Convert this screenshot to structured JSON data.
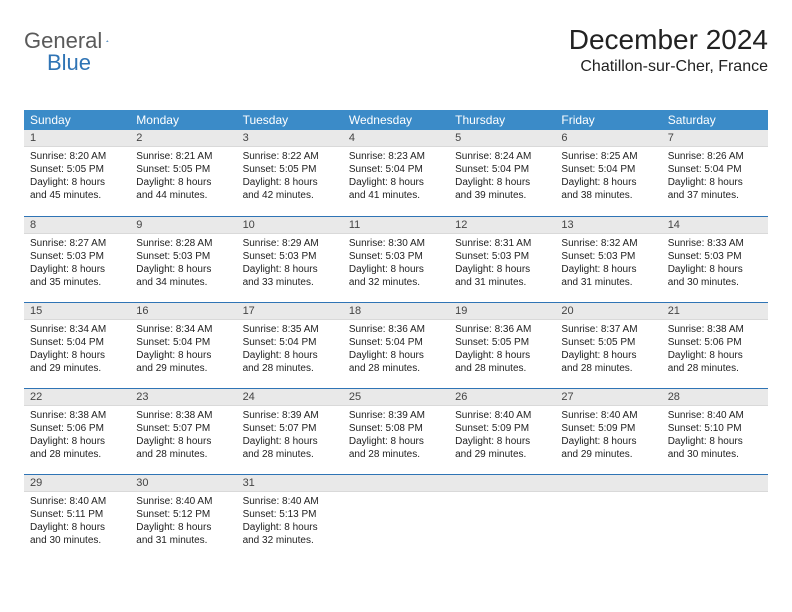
{
  "logo": {
    "text1": "General",
    "text2": "Blue"
  },
  "title": "December 2024",
  "location": "Chatillon-sur-Cher, France",
  "colors": {
    "header_bg": "#3b8bc8",
    "header_text": "#ffffff",
    "daynum_bg": "#e9e9e9",
    "row_border": "#2f74b5",
    "logo_gray": "#5a5a5a",
    "logo_blue": "#2f74b5",
    "body_text": "#222222",
    "page_bg": "#ffffff"
  },
  "typography": {
    "title_fontsize": 28,
    "location_fontsize": 16,
    "weekday_fontsize": 12,
    "daynum_fontsize": 11,
    "cell_fontsize": 10
  },
  "layout": {
    "columns": 7,
    "rows": 5,
    "start_weekday": "Sunday"
  },
  "weekdays": [
    "Sunday",
    "Monday",
    "Tuesday",
    "Wednesday",
    "Thursday",
    "Friday",
    "Saturday"
  ],
  "days": [
    {
      "n": "1",
      "sunrise": "8:20 AM",
      "sunset": "5:05 PM",
      "daylight": "8 hours and 45 minutes."
    },
    {
      "n": "2",
      "sunrise": "8:21 AM",
      "sunset": "5:05 PM",
      "daylight": "8 hours and 44 minutes."
    },
    {
      "n": "3",
      "sunrise": "8:22 AM",
      "sunset": "5:05 PM",
      "daylight": "8 hours and 42 minutes."
    },
    {
      "n": "4",
      "sunrise": "8:23 AM",
      "sunset": "5:04 PM",
      "daylight": "8 hours and 41 minutes."
    },
    {
      "n": "5",
      "sunrise": "8:24 AM",
      "sunset": "5:04 PM",
      "daylight": "8 hours and 39 minutes."
    },
    {
      "n": "6",
      "sunrise": "8:25 AM",
      "sunset": "5:04 PM",
      "daylight": "8 hours and 38 minutes."
    },
    {
      "n": "7",
      "sunrise": "8:26 AM",
      "sunset": "5:04 PM",
      "daylight": "8 hours and 37 minutes."
    },
    {
      "n": "8",
      "sunrise": "8:27 AM",
      "sunset": "5:03 PM",
      "daylight": "8 hours and 35 minutes."
    },
    {
      "n": "9",
      "sunrise": "8:28 AM",
      "sunset": "5:03 PM",
      "daylight": "8 hours and 34 minutes."
    },
    {
      "n": "10",
      "sunrise": "8:29 AM",
      "sunset": "5:03 PM",
      "daylight": "8 hours and 33 minutes."
    },
    {
      "n": "11",
      "sunrise": "8:30 AM",
      "sunset": "5:03 PM",
      "daylight": "8 hours and 32 minutes."
    },
    {
      "n": "12",
      "sunrise": "8:31 AM",
      "sunset": "5:03 PM",
      "daylight": "8 hours and 31 minutes."
    },
    {
      "n": "13",
      "sunrise": "8:32 AM",
      "sunset": "5:03 PM",
      "daylight": "8 hours and 31 minutes."
    },
    {
      "n": "14",
      "sunrise": "8:33 AM",
      "sunset": "5:03 PM",
      "daylight": "8 hours and 30 minutes."
    },
    {
      "n": "15",
      "sunrise": "8:34 AM",
      "sunset": "5:04 PM",
      "daylight": "8 hours and 29 minutes."
    },
    {
      "n": "16",
      "sunrise": "8:34 AM",
      "sunset": "5:04 PM",
      "daylight": "8 hours and 29 minutes."
    },
    {
      "n": "17",
      "sunrise": "8:35 AM",
      "sunset": "5:04 PM",
      "daylight": "8 hours and 28 minutes."
    },
    {
      "n": "18",
      "sunrise": "8:36 AM",
      "sunset": "5:04 PM",
      "daylight": "8 hours and 28 minutes."
    },
    {
      "n": "19",
      "sunrise": "8:36 AM",
      "sunset": "5:05 PM",
      "daylight": "8 hours and 28 minutes."
    },
    {
      "n": "20",
      "sunrise": "8:37 AM",
      "sunset": "5:05 PM",
      "daylight": "8 hours and 28 minutes."
    },
    {
      "n": "21",
      "sunrise": "8:38 AM",
      "sunset": "5:06 PM",
      "daylight": "8 hours and 28 minutes."
    },
    {
      "n": "22",
      "sunrise": "8:38 AM",
      "sunset": "5:06 PM",
      "daylight": "8 hours and 28 minutes."
    },
    {
      "n": "23",
      "sunrise": "8:38 AM",
      "sunset": "5:07 PM",
      "daylight": "8 hours and 28 minutes."
    },
    {
      "n": "24",
      "sunrise": "8:39 AM",
      "sunset": "5:07 PM",
      "daylight": "8 hours and 28 minutes."
    },
    {
      "n": "25",
      "sunrise": "8:39 AM",
      "sunset": "5:08 PM",
      "daylight": "8 hours and 28 minutes."
    },
    {
      "n": "26",
      "sunrise": "8:40 AM",
      "sunset": "5:09 PM",
      "daylight": "8 hours and 29 minutes."
    },
    {
      "n": "27",
      "sunrise": "8:40 AM",
      "sunset": "5:09 PM",
      "daylight": "8 hours and 29 minutes."
    },
    {
      "n": "28",
      "sunrise": "8:40 AM",
      "sunset": "5:10 PM",
      "daylight": "8 hours and 30 minutes."
    },
    {
      "n": "29",
      "sunrise": "8:40 AM",
      "sunset": "5:11 PM",
      "daylight": "8 hours and 30 minutes."
    },
    {
      "n": "30",
      "sunrise": "8:40 AM",
      "sunset": "5:12 PM",
      "daylight": "8 hours and 31 minutes."
    },
    {
      "n": "31",
      "sunrise": "8:40 AM",
      "sunset": "5:13 PM",
      "daylight": "8 hours and 32 minutes."
    }
  ],
  "labels": {
    "sunrise": "Sunrise:",
    "sunset": "Sunset:",
    "daylight": "Daylight:"
  }
}
